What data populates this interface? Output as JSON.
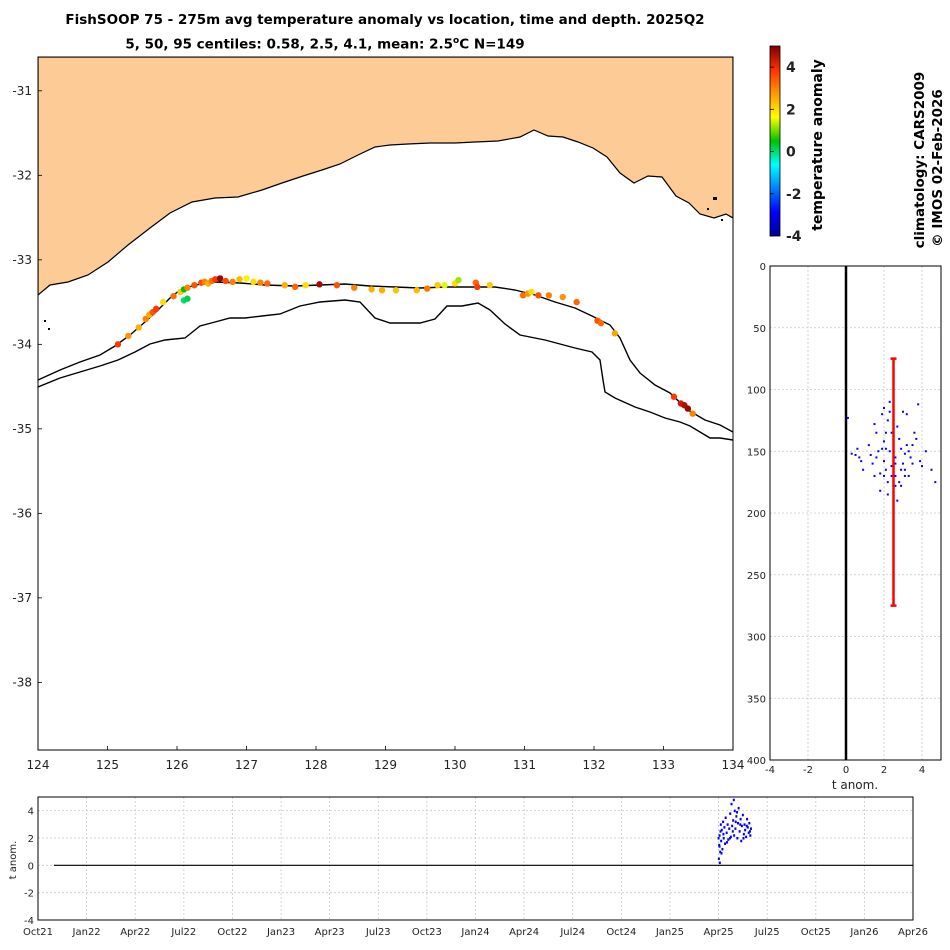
{
  "titles": {
    "line1": "FishSOOP 75 - 275m avg temperature anomaly vs location, time and depth. 2025Q2",
    "line2_pre": "5, 50, 95 centiles: 0.58, 2.5, 4.1, mean: 2.5",
    "line2_sup": "o",
    "line2_post": "C N=149"
  },
  "side_labels": {
    "colorbar": "temperature anomaly",
    "climatology": "climatology: CARS2009",
    "copyright": "© IMOS 02-Feb-2026"
  },
  "colors": {
    "land": "#fccb96",
    "coast": "#000000",
    "depth_points": "#0000ff",
    "centile_bar": "#ff0000"
  },
  "chart_data": [
    {
      "type": "scatter",
      "name": "map",
      "xlim": [
        124,
        134
      ],
      "ylim": [
        -38.8,
        -30.6
      ],
      "xticks": [
        "124",
        "125",
        "126",
        "127",
        "128",
        "129",
        "130",
        "131",
        "132",
        "133",
        "134"
      ],
      "yticks": [
        "-31",
        "-32",
        "-33",
        "-34",
        "-35",
        "-36",
        "-37",
        "-38"
      ],
      "colorbar": {
        "clim": [
          -4,
          5
        ],
        "ticks": [
          "4",
          "2",
          "0",
          "-2",
          "-4"
        ],
        "label": "temperature anomaly"
      },
      "points": [
        [
          125.15,
          -34.0,
          3.8
        ],
        [
          125.3,
          -33.9,
          2.8
        ],
        [
          125.45,
          -33.8,
          2.5
        ],
        [
          125.55,
          -33.7,
          3.0
        ],
        [
          125.6,
          -33.65,
          2.5
        ],
        [
          125.65,
          -33.62,
          3.5
        ],
        [
          125.7,
          -33.58,
          3.8
        ],
        [
          125.8,
          -33.5,
          2.0
        ],
        [
          125.95,
          -33.43,
          3.2
        ],
        [
          126.05,
          -33.38,
          2.2
        ],
        [
          126.1,
          -33.35,
          0.5
        ],
        [
          126.15,
          -33.33,
          3.0
        ],
        [
          126.1,
          -33.48,
          0.0
        ],
        [
          126.15,
          -33.46,
          0.2
        ],
        [
          126.25,
          -33.3,
          3.5
        ],
        [
          126.35,
          -33.27,
          3.6
        ],
        [
          126.4,
          -33.26,
          3.0
        ],
        [
          126.45,
          -33.28,
          2.5
        ],
        [
          126.5,
          -33.25,
          3.2
        ],
        [
          126.55,
          -33.23,
          3.8
        ],
        [
          126.62,
          -33.22,
          4.8
        ],
        [
          126.7,
          -33.25,
          3.6
        ],
        [
          126.8,
          -33.26,
          3.0
        ],
        [
          126.9,
          -33.23,
          2.4
        ],
        [
          127.0,
          -33.22,
          1.8
        ],
        [
          127.1,
          -33.26,
          2.0
        ],
        [
          127.2,
          -33.27,
          3.0
        ],
        [
          127.3,
          -33.28,
          3.3
        ],
        [
          127.55,
          -33.3,
          2.5
        ],
        [
          127.7,
          -33.32,
          3.3
        ],
        [
          127.85,
          -33.3,
          2.0
        ],
        [
          128.05,
          -33.29,
          4.7
        ],
        [
          128.3,
          -33.3,
          3.5
        ],
        [
          128.55,
          -33.33,
          3.0
        ],
        [
          128.8,
          -33.35,
          2.5
        ],
        [
          128.95,
          -33.36,
          2.5
        ],
        [
          129.15,
          -33.36,
          2.3
        ],
        [
          129.45,
          -33.36,
          2.4
        ],
        [
          129.6,
          -33.34,
          3.1
        ],
        [
          129.75,
          -33.3,
          2.2
        ],
        [
          129.85,
          -33.3,
          1.5
        ],
        [
          130.0,
          -33.28,
          2.0
        ],
        [
          130.05,
          -33.24,
          1.2
        ],
        [
          130.3,
          -33.27,
          3.3
        ],
        [
          130.32,
          -33.32,
          3.8
        ],
        [
          130.5,
          -33.3,
          2.2
        ],
        [
          130.98,
          -33.42,
          3.2
        ],
        [
          131.05,
          -33.4,
          2.8
        ],
        [
          131.1,
          -33.38,
          2.0
        ],
        [
          131.2,
          -33.42,
          3.5
        ],
        [
          131.35,
          -33.42,
          3.0
        ],
        [
          131.55,
          -33.44,
          2.8
        ],
        [
          131.75,
          -33.5,
          3.3
        ],
        [
          132.05,
          -33.72,
          3.5
        ],
        [
          132.1,
          -33.75,
          3.2
        ],
        [
          132.3,
          -33.87,
          2.6
        ],
        [
          133.15,
          -34.62,
          3.8
        ],
        [
          133.25,
          -34.7,
          4.3
        ],
        [
          133.3,
          -34.72,
          4.6
        ],
        [
          133.35,
          -34.76,
          4.8
        ],
        [
          133.42,
          -34.82,
          3.0
        ]
      ]
    },
    {
      "type": "scatter",
      "name": "depth_profile",
      "xlabel": "t anom.",
      "xlim": [
        -4,
        5
      ],
      "ylim": [
        0,
        400
      ],
      "xticks": [
        "-4",
        "-2",
        "0",
        "2",
        "4"
      ],
      "yticks": [
        "0",
        "50",
        "100",
        "150",
        "200",
        "250",
        "300",
        "350",
        "400"
      ],
      "centiles": {
        "x": 2.5,
        "ymin": 75,
        "ymax": 275
      },
      "points": [
        [
          0.1,
          123
        ],
        [
          0.3,
          152
        ],
        [
          0.5,
          153
        ],
        [
          0.6,
          148
        ],
        [
          0.8,
          158
        ],
        [
          0.9,
          165
        ],
        [
          0.7,
          155
        ],
        [
          1.2,
          145
        ],
        [
          1.4,
          160
        ],
        [
          1.5,
          170
        ],
        [
          1.6,
          135
        ],
        [
          1.7,
          150
        ],
        [
          1.8,
          168
        ],
        [
          1.9,
          120
        ],
        [
          1.6,
          155
        ],
        [
          1.5,
          128
        ],
        [
          2.0,
          115
        ],
        [
          2.1,
          135
        ],
        [
          2.0,
          158
        ],
        [
          2.2,
          125
        ],
        [
          2.3,
          150
        ],
        [
          2.1,
          165
        ],
        [
          2.2,
          175
        ],
        [
          2.3,
          118
        ],
        [
          2.0,
          142
        ],
        [
          2.4,
          162
        ],
        [
          2.5,
          145
        ],
        [
          2.6,
          155
        ],
        [
          2.6,
          170
        ],
        [
          2.7,
          130
        ],
        [
          2.8,
          175
        ],
        [
          2.5,
          180
        ],
        [
          2.4,
          135
        ],
        [
          2.6,
          160
        ],
        [
          2.9,
          148
        ],
        [
          3.0,
          160
        ],
        [
          3.1,
          165
        ],
        [
          3.2,
          120
        ],
        [
          3.3,
          150
        ],
        [
          3.1,
          170
        ],
        [
          3.2,
          145
        ],
        [
          3.0,
          118
        ],
        [
          2.9,
          165
        ],
        [
          3.4,
          155
        ],
        [
          3.6,
          135
        ],
        [
          3.8,
          112
        ],
        [
          3.7,
          140
        ],
        [
          3.5,
          160
        ],
        [
          3.9,
          158
        ],
        [
          4.0,
          162
        ],
        [
          4.2,
          150
        ],
        [
          4.5,
          165
        ],
        [
          4.7,
          175
        ],
        [
          2.3,
          110
        ],
        [
          2.7,
          190
        ],
        [
          1.8,
          182
        ],
        [
          2.2,
          185
        ],
        [
          2.9,
          178
        ],
        [
          1.9,
          148
        ],
        [
          3.3,
          170
        ],
        [
          2.4,
          170
        ],
        [
          1.3,
          153
        ],
        [
          2.1,
          148
        ],
        [
          2.8,
          140
        ],
        [
          3.5,
          145
        ],
        [
          2.0,
          170
        ],
        [
          3.1,
          152
        ],
        [
          2.6,
          178
        ]
      ]
    },
    {
      "type": "scatter",
      "name": "time_series",
      "ylabel": "t anom.",
      "xlim": [
        "Oct21",
        "Apr26"
      ],
      "ylim": [
        -4,
        5
      ],
      "xticks": [
        "Oct21",
        "Jan22",
        "Apr22",
        "Jul22",
        "Oct22",
        "Jan23",
        "Apr23",
        "Jul23",
        "Oct23",
        "Jan24",
        "Apr24",
        "Jul24",
        "Oct24",
        "Jan25",
        "Apr25",
        "Jul25",
        "Oct25",
        "Jan26",
        "Apr26"
      ],
      "yticks": [
        "4",
        "2",
        "0",
        "-2",
        "-4"
      ],
      "point_x_range": [
        "Apr25",
        "Jun25"
      ],
      "points": [
        [
          0.0,
          2.0
        ],
        [
          0.01,
          0.5
        ],
        [
          0.02,
          1.5
        ],
        [
          0.03,
          2.2
        ],
        [
          0.04,
          0.2
        ],
        [
          0.05,
          1.0
        ],
        [
          0.06,
          2.5
        ],
        [
          0.07,
          3.0
        ],
        [
          0.08,
          1.8
        ],
        [
          0.1,
          2.6
        ],
        [
          0.12,
          1.2
        ],
        [
          0.14,
          3.2
        ],
        [
          0.16,
          2.0
        ],
        [
          0.18,
          2.8
        ],
        [
          0.2,
          1.6
        ],
        [
          0.22,
          3.5
        ],
        [
          0.25,
          2.4
        ],
        [
          0.28,
          3.0
        ],
        [
          0.3,
          1.9
        ],
        [
          0.33,
          2.7
        ],
        [
          0.36,
          3.8
        ],
        [
          0.38,
          2.1
        ],
        [
          0.4,
          4.5
        ],
        [
          0.42,
          2.9
        ],
        [
          0.45,
          3.3
        ],
        [
          0.48,
          2.2
        ],
        [
          0.5,
          4.0
        ],
        [
          0.52,
          2.7
        ],
        [
          0.55,
          3.6
        ],
        [
          0.58,
          2.0
        ],
        [
          0.6,
          3.1
        ],
        [
          0.62,
          4.2
        ],
        [
          0.65,
          2.5
        ],
        [
          0.68,
          3.4
        ],
        [
          0.7,
          1.8
        ],
        [
          0.72,
          2.9
        ],
        [
          0.75,
          3.7
        ],
        [
          0.78,
          2.3
        ],
        [
          0.8,
          3.0
        ],
        [
          0.82,
          2.6
        ],
        [
          0.85,
          2.1
        ],
        [
          0.88,
          3.4
        ],
        [
          0.9,
          2.8
        ],
        [
          0.93,
          2.4
        ],
        [
          0.95,
          3.1
        ],
        [
          0.98,
          2.2
        ],
        [
          1.0,
          2.7
        ],
        [
          0.03,
          1.4
        ],
        [
          0.09,
          0.9
        ],
        [
          0.15,
          2.3
        ],
        [
          0.26,
          1.7
        ],
        [
          0.35,
          2.0
        ],
        [
          0.44,
          2.5
        ],
        [
          0.57,
          3.9
        ],
        [
          0.67,
          3.0
        ],
        [
          0.77,
          2.0
        ],
        [
          0.87,
          2.9
        ],
        [
          0.97,
          2.5
        ],
        [
          0.47,
          4.8
        ],
        [
          0.53,
          3.2
        ]
      ]
    }
  ]
}
